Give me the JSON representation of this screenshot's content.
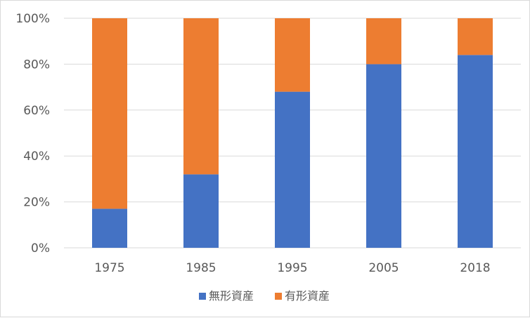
{
  "chart_data": {
    "type": "bar",
    "stacked": true,
    "categories": [
      "1975",
      "1985",
      "1995",
      "2005",
      "2018"
    ],
    "series": [
      {
        "name": "無形資産",
        "values": [
          17,
          32,
          68,
          80,
          84
        ],
        "color": "#4472C4"
      },
      {
        "name": "有形資産",
        "values": [
          83,
          68,
          32,
          20,
          16
        ],
        "color": "#ED7D31"
      }
    ],
    "y_ticks": [
      "0%",
      "20%",
      "40%",
      "60%",
      "80%",
      "100%"
    ],
    "ylim": [
      0,
      100
    ],
    "grid": true,
    "legend_position": "bottom"
  }
}
